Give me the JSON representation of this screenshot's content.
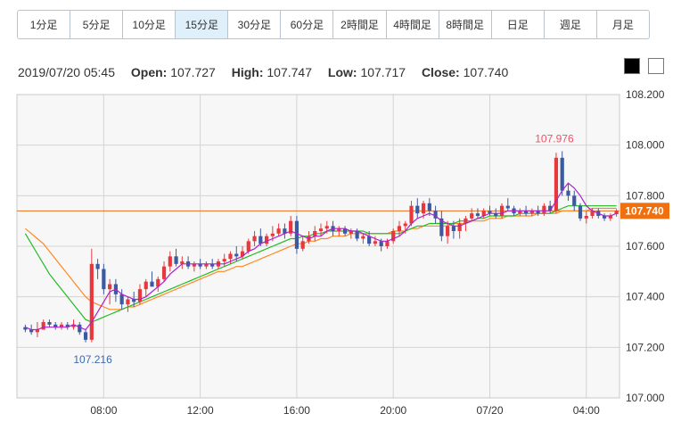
{
  "timeframes": {
    "items": [
      "1分足",
      "5分足",
      "10分足",
      "15分足",
      "30分足",
      "60分足",
      "2時間足",
      "4時間足",
      "8時間足",
      "日足",
      "週足",
      "月足"
    ],
    "active_index": 3
  },
  "ohlc": {
    "datetime": "2019/07/20 05:45",
    "open_label": "Open:",
    "open": "107.727",
    "high_label": "High:",
    "high": "107.747",
    "low_label": "Low:",
    "low": "107.717",
    "close_label": "Close:",
    "close": "107.740"
  },
  "theme_toggle": [
    "dark",
    "light"
  ],
  "colors": {
    "up": "#e8383d",
    "down": "#3c5aa0",
    "ma_short": "#aa22cc",
    "ma_mid": "#22bb22",
    "ma_long": "#ff8822",
    "price_line": "#e8701a",
    "price_tag": "#f07010",
    "grid": "#d3d3d3",
    "plot_bg": "#f7f7f7",
    "high_label": "#e8556a",
    "low_label": "#3c6ab0"
  },
  "chart_data": {
    "type": "candlestick",
    "y_range": [
      107.0,
      108.2
    ],
    "y_ticks": [
      "107.000",
      "107.200",
      "107.400",
      "107.600",
      "107.800",
      "108.000",
      "108.200"
    ],
    "x_ticks": [
      {
        "index": 13,
        "label": "08:00"
      },
      {
        "index": 29,
        "label": "12:00"
      },
      {
        "index": 45,
        "label": "16:00"
      },
      {
        "index": 61,
        "label": "20:00"
      },
      {
        "index": 77,
        "label": "07/20"
      },
      {
        "index": 93,
        "label": "04:00"
      }
    ],
    "current_price": "107.740",
    "current_price_value": 107.74,
    "high_annotation": {
      "index": 88,
      "value": 107.976,
      "label": "107.976"
    },
    "low_annotation": {
      "index": 10,
      "value": 107.216,
      "label": "107.216"
    },
    "candles": [
      [
        107.28,
        107.29,
        107.26,
        107.27
      ],
      [
        107.27,
        107.29,
        107.25,
        107.26
      ],
      [
        107.26,
        107.3,
        107.24,
        107.27
      ],
      [
        107.27,
        107.31,
        107.27,
        107.3
      ],
      [
        107.3,
        107.31,
        107.28,
        107.29
      ],
      [
        107.29,
        107.3,
        107.27,
        107.28
      ],
      [
        107.28,
        107.3,
        107.27,
        107.29
      ],
      [
        107.29,
        107.3,
        107.27,
        107.28
      ],
      [
        107.28,
        107.31,
        107.27,
        107.29
      ],
      [
        107.29,
        107.3,
        107.25,
        107.26
      ],
      [
        107.26,
        107.27,
        107.22,
        107.23
      ],
      [
        107.23,
        107.59,
        107.22,
        107.53
      ],
      [
        107.53,
        107.55,
        107.47,
        107.51
      ],
      [
        107.51,
        107.53,
        107.41,
        107.43
      ],
      [
        107.43,
        107.47,
        107.37,
        107.45
      ],
      [
        107.45,
        107.47,
        107.38,
        107.41
      ],
      [
        107.41,
        107.43,
        107.35,
        107.37
      ],
      [
        107.37,
        107.4,
        107.34,
        107.39
      ],
      [
        107.39,
        107.42,
        107.36,
        107.38
      ],
      [
        107.38,
        107.45,
        107.37,
        107.43
      ],
      [
        107.43,
        107.47,
        107.4,
        107.46
      ],
      [
        107.46,
        107.5,
        107.44,
        107.44
      ],
      [
        107.44,
        107.48,
        107.42,
        107.47
      ],
      [
        107.47,
        107.54,
        107.46,
        107.52
      ],
      [
        107.52,
        107.58,
        107.5,
        107.56
      ],
      [
        107.56,
        107.59,
        107.52,
        107.53
      ],
      [
        107.53,
        107.56,
        107.51,
        107.54
      ],
      [
        107.54,
        107.56,
        107.51,
        107.52
      ],
      [
        107.52,
        107.54,
        107.5,
        107.53
      ],
      [
        107.53,
        107.55,
        107.51,
        107.52
      ],
      [
        107.52,
        107.54,
        107.51,
        107.53
      ],
      [
        107.53,
        107.55,
        107.51,
        107.52
      ],
      [
        107.52,
        107.55,
        107.51,
        107.54
      ],
      [
        107.54,
        107.57,
        107.52,
        107.55
      ],
      [
        107.55,
        107.58,
        107.53,
        107.57
      ],
      [
        107.57,
        107.6,
        107.54,
        107.56
      ],
      [
        107.56,
        107.6,
        107.55,
        107.58
      ],
      [
        107.58,
        107.63,
        107.57,
        107.62
      ],
      [
        107.62,
        107.66,
        107.6,
        107.64
      ],
      [
        107.64,
        107.67,
        107.6,
        107.61
      ],
      [
        107.61,
        107.65,
        107.6,
        107.64
      ],
      [
        107.64,
        107.68,
        107.62,
        107.65
      ],
      [
        107.65,
        107.69,
        107.64,
        107.67
      ],
      [
        107.67,
        107.69,
        107.63,
        107.65
      ],
      [
        107.65,
        107.72,
        107.64,
        107.7
      ],
      [
        107.7,
        107.72,
        107.57,
        107.59
      ],
      [
        107.59,
        107.64,
        107.58,
        107.62
      ],
      [
        107.62,
        107.66,
        107.61,
        107.64
      ],
      [
        107.64,
        107.68,
        107.62,
        107.66
      ],
      [
        107.66,
        107.69,
        107.64,
        107.67
      ],
      [
        107.67,
        107.7,
        107.65,
        107.68
      ],
      [
        107.68,
        107.7,
        107.64,
        107.66
      ],
      [
        107.66,
        107.68,
        107.64,
        107.67
      ],
      [
        107.67,
        107.68,
        107.64,
        107.65
      ],
      [
        107.65,
        107.67,
        107.63,
        107.66
      ],
      [
        107.66,
        107.67,
        107.62,
        107.63
      ],
      [
        107.63,
        107.65,
        107.61,
        107.64
      ],
      [
        107.64,
        107.66,
        107.6,
        107.61
      ],
      [
        107.61,
        107.64,
        107.6,
        107.62
      ],
      [
        107.62,
        107.63,
        107.58,
        107.6
      ],
      [
        107.6,
        107.63,
        107.59,
        107.62
      ],
      [
        107.62,
        107.67,
        107.61,
        107.66
      ],
      [
        107.66,
        107.7,
        107.64,
        107.68
      ],
      [
        107.68,
        107.7,
        107.65,
        107.69
      ],
      [
        107.69,
        107.78,
        107.68,
        107.76
      ],
      [
        107.76,
        107.79,
        107.71,
        107.73
      ],
      [
        107.73,
        107.78,
        107.71,
        107.77
      ],
      [
        107.77,
        107.79,
        107.72,
        107.74
      ],
      [
        107.74,
        107.76,
        107.69,
        107.71
      ],
      [
        107.71,
        107.74,
        107.62,
        107.64
      ],
      [
        107.64,
        107.7,
        107.61,
        107.68
      ],
      [
        107.68,
        107.7,
        107.63,
        107.66
      ],
      [
        107.66,
        107.71,
        107.63,
        107.69
      ],
      [
        107.69,
        107.72,
        107.66,
        107.71
      ],
      [
        107.71,
        107.75,
        107.7,
        107.73
      ],
      [
        107.73,
        107.75,
        107.71,
        107.72
      ],
      [
        107.72,
        107.75,
        107.71,
        107.74
      ],
      [
        107.74,
        107.76,
        107.72,
        107.73
      ],
      [
        107.73,
        107.75,
        107.71,
        107.72
      ],
      [
        107.72,
        107.77,
        107.71,
        107.76
      ],
      [
        107.76,
        107.79,
        107.74,
        107.75
      ],
      [
        107.75,
        107.76,
        107.72,
        107.73
      ],
      [
        107.73,
        107.75,
        107.72,
        107.74
      ],
      [
        107.74,
        107.76,
        107.72,
        107.73
      ],
      [
        107.73,
        107.75,
        107.72,
        107.74
      ],
      [
        107.74,
        107.76,
        107.72,
        107.73
      ],
      [
        107.73,
        107.77,
        107.72,
        107.76
      ],
      [
        107.76,
        107.78,
        107.73,
        107.74
      ],
      [
        107.74,
        107.97,
        107.73,
        107.95
      ],
      [
        107.95,
        107.976,
        107.8,
        107.82
      ],
      [
        107.82,
        107.85,
        107.78,
        107.8
      ],
      [
        107.8,
        107.82,
        107.74,
        107.76
      ],
      [
        107.76,
        107.77,
        107.7,
        107.71
      ],
      [
        107.71,
        107.74,
        107.69,
        107.72
      ],
      [
        107.72,
        107.75,
        107.71,
        107.74
      ],
      [
        107.74,
        107.75,
        107.71,
        107.72
      ],
      [
        107.72,
        107.73,
        107.7,
        107.71
      ],
      [
        107.71,
        107.73,
        107.7,
        107.72
      ],
      [
        107.727,
        107.747,
        107.717,
        107.74
      ]
    ],
    "ma_short": [
      107.28,
      107.27,
      107.27,
      107.28,
      107.28,
      107.28,
      107.28,
      107.28,
      107.29,
      107.28,
      107.27,
      107.3,
      107.34,
      107.38,
      107.42,
      107.43,
      107.41,
      107.4,
      107.39,
      107.39,
      107.4,
      107.42,
      107.44,
      107.46,
      107.49,
      107.51,
      107.53,
      107.53,
      107.53,
      107.53,
      107.53,
      107.53,
      107.53,
      107.53,
      107.54,
      107.55,
      107.56,
      107.58,
      107.59,
      107.61,
      107.62,
      107.63,
      107.64,
      107.65,
      107.66,
      107.65,
      107.64,
      107.63,
      107.64,
      107.64,
      107.66,
      107.67,
      107.67,
      107.67,
      107.66,
      107.66,
      107.65,
      107.64,
      107.63,
      107.62,
      107.62,
      107.63,
      107.64,
      107.66,
      107.69,
      107.71,
      107.72,
      107.73,
      107.72,
      107.7,
      107.69,
      107.68,
      107.68,
      107.69,
      107.7,
      107.71,
      107.72,
      107.73,
      107.73,
      107.73,
      107.74,
      107.74,
      107.74,
      107.74,
      107.74,
      107.74,
      107.74,
      107.74,
      107.78,
      107.82,
      107.85,
      107.83,
      107.8,
      107.76,
      107.74,
      107.73,
      107.72,
      107.72,
      107.73
    ],
    "ma_mid": [
      107.65,
      107.61,
      107.57,
      107.53,
      107.49,
      107.46,
      107.43,
      107.4,
      107.37,
      107.34,
      107.31,
      107.3,
      107.31,
      107.32,
      107.33,
      107.34,
      107.35,
      107.36,
      107.37,
      107.38,
      107.39,
      107.4,
      107.41,
      107.42,
      107.43,
      107.44,
      107.45,
      107.46,
      107.47,
      107.48,
      107.49,
      107.5,
      107.51,
      107.52,
      107.53,
      107.54,
      107.55,
      107.56,
      107.57,
      107.58,
      107.59,
      107.6,
      107.61,
      107.62,
      107.63,
      107.63,
      107.64,
      107.64,
      107.65,
      107.65,
      107.66,
      107.66,
      107.66,
      107.66,
      107.66,
      107.66,
      107.66,
      107.65,
      107.65,
      107.65,
      107.65,
      107.65,
      107.65,
      107.66,
      107.67,
      107.68,
      107.68,
      107.69,
      107.69,
      107.69,
      107.69,
      107.69,
      107.7,
      107.7,
      107.7,
      107.71,
      107.71,
      107.72,
      107.72,
      107.72,
      107.72,
      107.72,
      107.73,
      107.73,
      107.73,
      107.73,
      107.73,
      107.73,
      107.74,
      107.75,
      107.76,
      107.76,
      107.76,
      107.76,
      107.76,
      107.76,
      107.76,
      107.76,
      107.76
    ],
    "ma_long": [
      107.67,
      107.65,
      107.63,
      107.61,
      107.58,
      107.55,
      107.52,
      107.49,
      107.46,
      107.43,
      107.4,
      107.38,
      107.37,
      107.36,
      107.35,
      107.35,
      107.35,
      107.36,
      107.36,
      107.37,
      107.38,
      107.39,
      107.4,
      107.41,
      107.42,
      107.43,
      107.44,
      107.45,
      107.46,
      107.47,
      107.48,
      107.49,
      107.5,
      107.5,
      107.51,
      107.52,
      107.52,
      107.53,
      107.54,
      107.55,
      107.56,
      107.57,
      107.58,
      107.59,
      107.6,
      107.61,
      107.61,
      107.62,
      107.62,
      107.63,
      107.63,
      107.64,
      107.64,
      107.64,
      107.65,
      107.65,
      107.65,
      107.65,
      107.65,
      107.65,
      107.65,
      107.66,
      107.66,
      107.66,
      107.67,
      107.67,
      107.68,
      107.68,
      107.68,
      107.68,
      107.68,
      107.69,
      107.69,
      107.69,
      107.7,
      107.7,
      107.7,
      107.71,
      107.71,
      107.71,
      107.72,
      107.72,
      107.72,
      107.72,
      107.72,
      107.73,
      107.73,
      107.73,
      107.73,
      107.74,
      107.74,
      107.74,
      107.74,
      107.74,
      107.75,
      107.75,
      107.75,
      107.75,
      107.75
    ]
  }
}
